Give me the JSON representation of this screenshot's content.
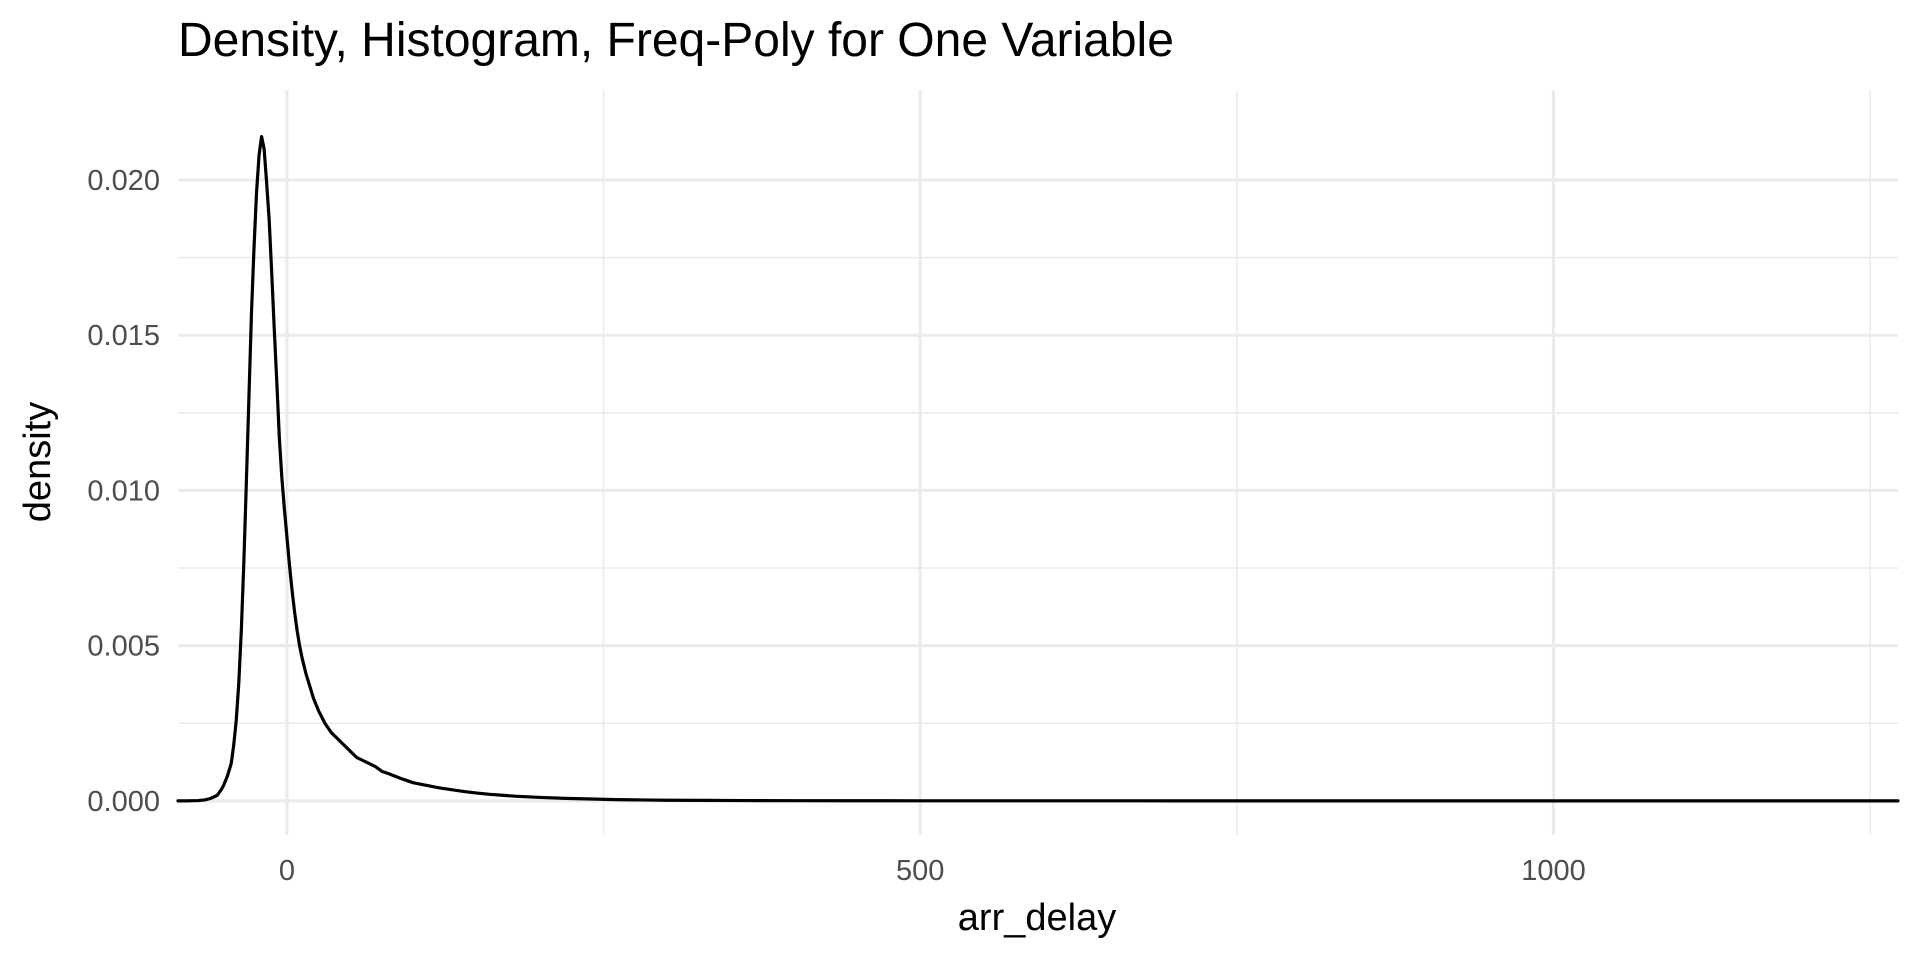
{
  "chart_data": {
    "type": "line",
    "title": "Density, Histogram, Freq-Poly for One Variable",
    "xlabel": "arr_delay",
    "ylabel": "density",
    "xlim": [
      -86,
      1272
    ],
    "ylim": [
      -0.0011,
      0.0229
    ],
    "x_ticks": [
      0,
      500,
      1000
    ],
    "x_minor_ticks": [
      -250,
      250,
      750,
      1250
    ],
    "y_ticks": [
      0.0,
      0.005,
      0.01,
      0.015,
      0.02
    ],
    "y_minor_ticks": [
      0.0025,
      0.0075,
      0.0125,
      0.0175
    ],
    "x_tick_labels": [
      "0",
      "500",
      "1000"
    ],
    "y_tick_labels": [
      "0.000",
      "0.005",
      "0.010",
      "0.015",
      "0.020"
    ],
    "grid": true,
    "legend": "none",
    "series": [
      {
        "x": [
          -86,
          -80,
          -70,
          -65,
          -60,
          -55,
          -52,
          -50,
          -47,
          -44,
          -42,
          -40,
          -38,
          -36,
          -34,
          -32,
          -30,
          -28,
          -26,
          -24,
          -22,
          -20,
          -18,
          -16,
          -14,
          -12,
          -10,
          -8,
          -6,
          -4,
          -2,
          0,
          2,
          4,
          6,
          8,
          10,
          12,
          15,
          18,
          21,
          25,
          30,
          35,
          40,
          45,
          50,
          55,
          60,
          65,
          70,
          75,
          80,
          85,
          90,
          95,
          100,
          110,
          120,
          130,
          140,
          150,
          160,
          170,
          180,
          190,
          200,
          220,
          240,
          260,
          280,
          300,
          330,
          360,
          400,
          450,
          500,
          600,
          700,
          800,
          900,
          1000,
          1100,
          1200,
          1272
        ],
        "y": [
          0.0,
          0.0,
          1e-05,
          3e-05,
          8e-05,
          0.00018,
          0.00035,
          0.0005,
          0.0008,
          0.0012,
          0.0018,
          0.0026,
          0.0038,
          0.0055,
          0.0077,
          0.0103,
          0.013,
          0.0157,
          0.0178,
          0.0196,
          0.0208,
          0.0214,
          0.021,
          0.0199,
          0.0187,
          0.017,
          0.0152,
          0.0135,
          0.0117,
          0.0104,
          0.0094,
          0.0085,
          0.0076,
          0.0068,
          0.0061,
          0.0055,
          0.005,
          0.0046,
          0.0041,
          0.0037,
          0.0033,
          0.0029,
          0.0025,
          0.0022,
          0.002,
          0.0018,
          0.0016,
          0.0014,
          0.0013,
          0.0012,
          0.0011,
          0.00095,
          0.00088,
          0.0008,
          0.00072,
          0.00065,
          0.00058,
          0.0005,
          0.00042,
          0.00036,
          0.0003,
          0.00025,
          0.00021,
          0.00018,
          0.00015,
          0.00013,
          0.00011,
          8e-05,
          6e-05,
          4e-05,
          3e-05,
          2e-05,
          1.5e-05,
          1e-05,
          6e-06,
          4e-06,
          2e-06,
          1e-06,
          5e-07,
          3e-07,
          2e-07,
          1e-07,
          1e-07,
          1e-07,
          0.0
        ]
      }
    ]
  }
}
